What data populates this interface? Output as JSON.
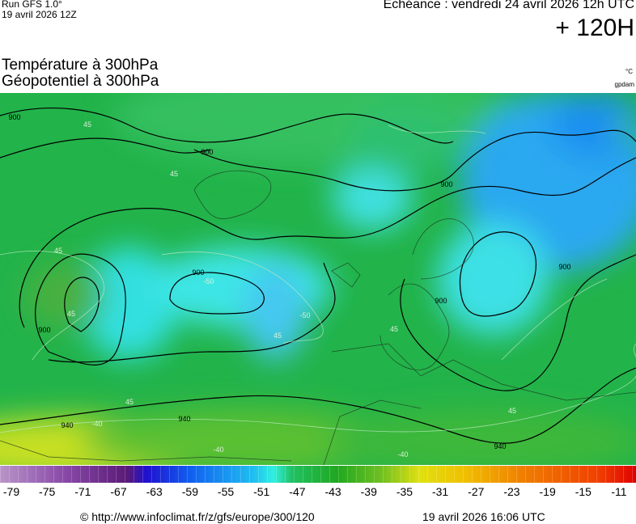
{
  "header": {
    "run": "Run GFS 1.0°",
    "run_date": "19 avril 2026 12Z",
    "forecast": "Echéance : vendredi 24 avril 2026 12h UTC",
    "lead": "+ 120H",
    "title_1": "Température à 300hPa",
    "title_2": "Géopotentiel à 300hPa",
    "unit_temp": "°C",
    "unit_geo": "gpdam"
  },
  "map": {
    "contour_labels": [
      "900",
      "900",
      "900",
      "900",
      "900",
      "900",
      "900",
      "940",
      "940",
      "940"
    ],
    "isotherm_labels": [
      "45",
      "45",
      "45",
      "-50",
      "-50",
      "45",
      "45",
      "45",
      "-40",
      "-40",
      "-40",
      "45",
      "45"
    ]
  },
  "colorbar": {
    "labels": [
      "-79",
      "-75",
      "-71",
      "-67",
      "-63",
      "-59",
      "-55",
      "-51",
      "-47",
      "-43",
      "-39",
      "-35",
      "-31",
      "-27",
      "-23",
      "-19",
      "-15",
      "-11"
    ]
  },
  "footer": {
    "url": "© http://www.infoclimat.fr/z/gfs/europe/300/120",
    "issued": "19 avril 2026 16:06 UTC"
  }
}
